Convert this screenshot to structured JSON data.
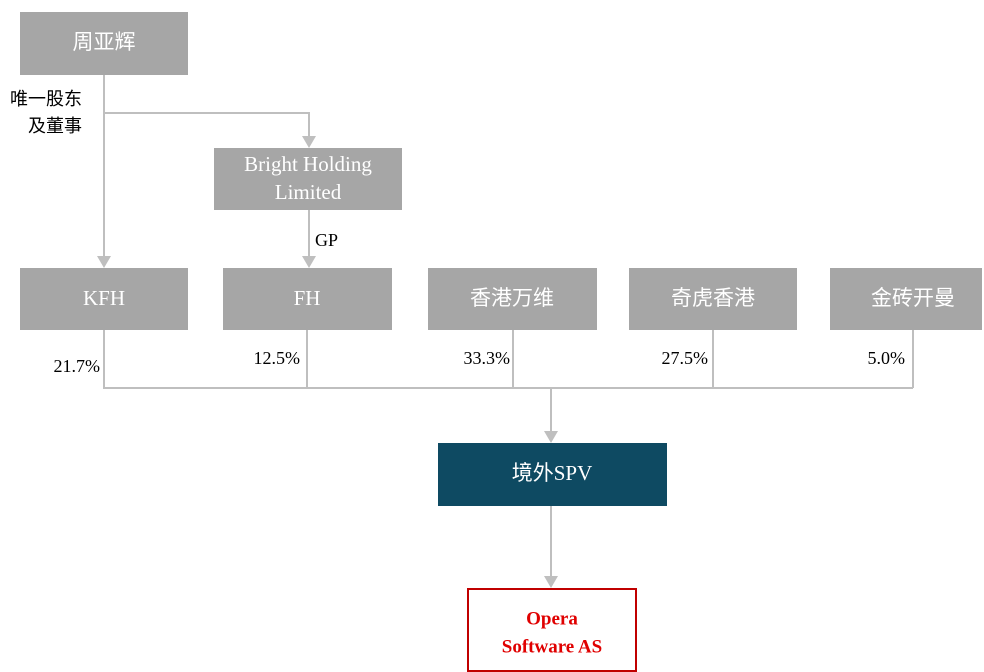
{
  "nodes": {
    "founder": "周亚辉",
    "bright": [
      "Bright Holding",
      "Limited"
    ],
    "holders": [
      "KFH",
      "FH",
      "香港万维",
      "奇虎香港",
      "金砖开曼"
    ],
    "spv": "境外SPV",
    "target": [
      "Opera",
      "Software AS"
    ]
  },
  "relations": {
    "founder_role": [
      "唯一股东",
      "及董事"
    ],
    "gp": "GP"
  },
  "stakes": [
    "21.7%",
    "12.5%",
    "33.3%",
    "27.5%",
    "5.0%"
  ]
}
